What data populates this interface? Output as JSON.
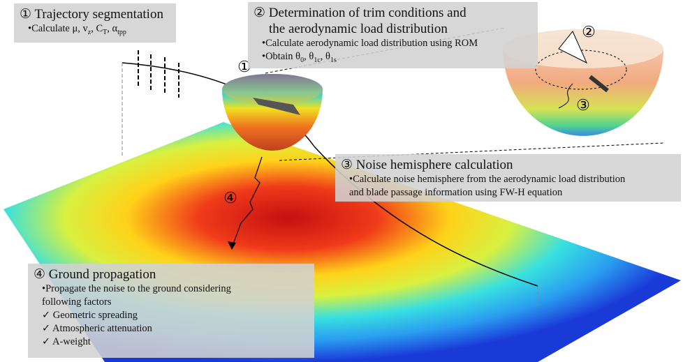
{
  "steps": [
    {
      "title": "① Trajectory segmentation",
      "lines": [
        [
          {
            "text": "•Calculate μ, v"
          },
          {
            "sub": "z"
          },
          {
            "text": ", C"
          },
          {
            "sub": "T"
          },
          {
            "text": ", α"
          },
          {
            "sub": "tpp"
          }
        ]
      ]
    },
    {
      "title": "② Determination of trim conditions and",
      "title2": "the aerodynamic load distribution",
      "lines": [
        [
          {
            "text": "•Calculate aerodynamic load distribution using ROM"
          }
        ],
        [
          {
            "text": "•Obtain θ"
          },
          {
            "sub": "0"
          },
          {
            "text": ", θ"
          },
          {
            "sub": "1c"
          },
          {
            "text": ", θ"
          },
          {
            "sub": "1s"
          }
        ]
      ]
    },
    {
      "title": "③ Noise hemisphere calculation",
      "lines": [
        [
          {
            "text": "•Calculate noise hemisphere from the aerodynamic load distribution"
          }
        ],
        [
          {
            "text": "and blade passage information using FW-H equation"
          }
        ]
      ]
    },
    {
      "title": "④ Ground propagation",
      "lines": [
        [
          {
            "text": "•Propagate the noise to the ground considering"
          }
        ],
        [
          {
            "text": "following factors"
          }
        ],
        [
          {
            "text": "✓ Geometric spreading"
          }
        ],
        [
          {
            "text": "✓ Atmospheric attenuation"
          }
        ],
        [
          {
            "text": "✓ A-weight"
          }
        ]
      ]
    }
  ],
  "markers": [
    "①",
    "②",
    "③",
    "④"
  ]
}
